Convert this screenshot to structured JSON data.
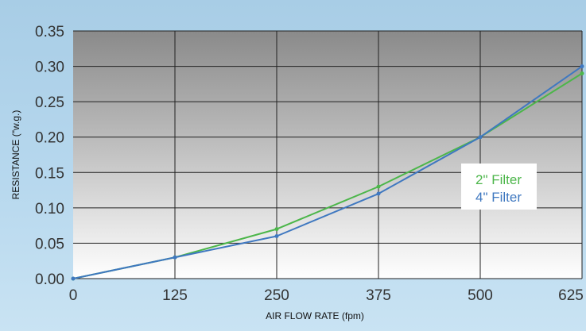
{
  "chart_data": {
    "type": "line",
    "title": "",
    "xlabel": "AIR FLOW RATE (fpm)",
    "ylabel": "RESISTANCE (\"w.g.)",
    "x": [
      0,
      125,
      250,
      375,
      500,
      625
    ],
    "x_ticks": [
      "0",
      "125",
      "250",
      "375",
      "500",
      "625"
    ],
    "y_ticks": [
      "0.00",
      "0.05",
      "0.10",
      "0.15",
      "0.20",
      "0.25",
      "0.30",
      "0.35"
    ],
    "xlim": [
      0,
      625
    ],
    "ylim": [
      0,
      0.35
    ],
    "grid": true,
    "legend_position": "right",
    "series": [
      {
        "name": "2\" Filter",
        "color": "#4cb64a",
        "values": [
          0.0,
          0.03,
          0.07,
          0.13,
          0.2,
          0.29
        ]
      },
      {
        "name": "4\" Filter",
        "color": "#3f78c0",
        "values": [
          0.0,
          0.03,
          0.06,
          0.12,
          0.2,
          0.3
        ]
      }
    ]
  }
}
